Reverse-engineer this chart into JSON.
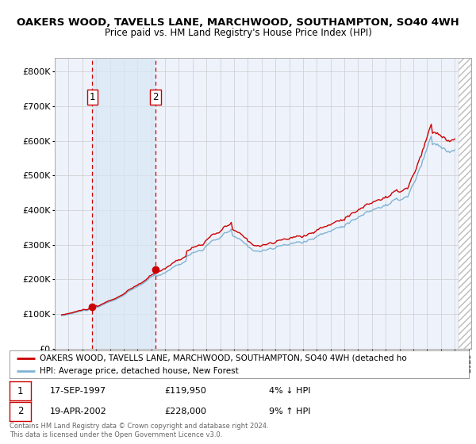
{
  "title": "OAKERS WOOD, TAVELLS LANE, MARCHWOOD, SOUTHAMPTON, SO40 4WH",
  "subtitle": "Price paid vs. HM Land Registry's House Price Index (HPI)",
  "red_line_label": "OAKERS WOOD, TAVELLS LANE, MARCHWOOD, SOUTHAMPTON, SO40 4WH (detached ho",
  "blue_line_label": "HPI: Average price, detached house, New Forest",
  "purchase1_date": "17-SEP-1997",
  "purchase1_price": 119950,
  "purchase1_note": "4% ↓ HPI",
  "purchase1_label": "1",
  "purchase2_date": "19-APR-2002",
  "purchase2_price": 228000,
  "purchase2_note": "9% ↑ HPI",
  "purchase2_label": "2",
  "footer": "Contains HM Land Registry data © Crown copyright and database right 2024.\nThis data is licensed under the Open Government Licence v3.0.",
  "ylim": [
    0,
    840000
  ],
  "yticks": [
    0,
    100000,
    200000,
    300000,
    400000,
    500000,
    600000,
    700000,
    800000
  ],
  "ytick_labels": [
    "£0",
    "£100K",
    "£200K",
    "£300K",
    "£400K",
    "£500K",
    "£600K",
    "£700K",
    "£800K"
  ],
  "bg_color": "#ffffff",
  "plot_bg_color": "#eef2fb",
  "grid_color": "#cccccc",
  "red_color": "#cc0000",
  "blue_color": "#7fb3d3",
  "hatch_color": "#bbbbbb",
  "purchase1_x": 1997.72,
  "purchase2_x": 2002.3,
  "xmin": 1995.3,
  "xmax": 2025.2
}
